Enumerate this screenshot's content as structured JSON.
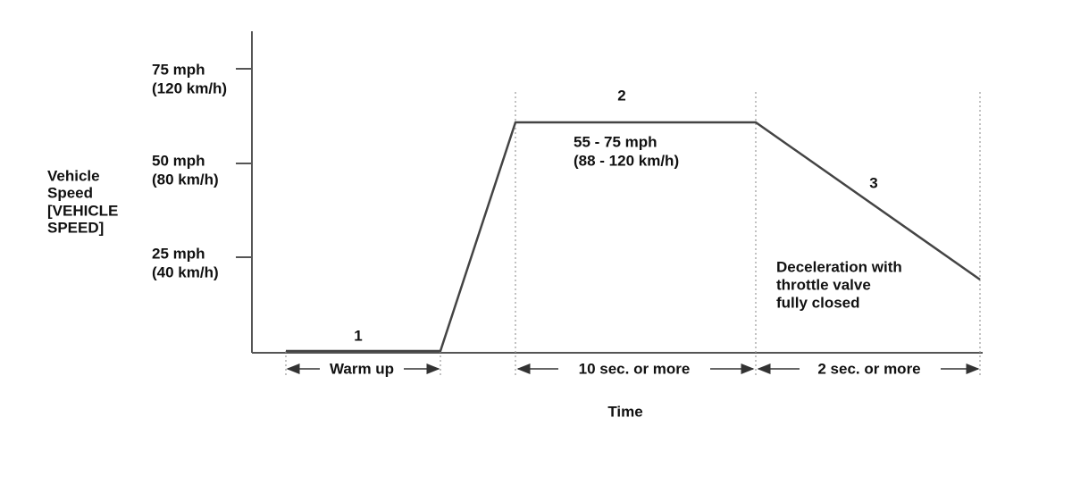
{
  "y_axis": {
    "label": [
      "Vehicle",
      "Speed",
      "[VEHICLE",
      "SPEED]"
    ],
    "ticks": [
      [
        "75 mph",
        "(120 km/h)"
      ],
      [
        "50 mph",
        "(80 km/h)"
      ],
      [
        "25 mph",
        "(40 km/h)"
      ]
    ]
  },
  "x_axis": {
    "label": "Time"
  },
  "phases": [
    {
      "number": "1",
      "duration": "Warm up"
    },
    {
      "number": "2",
      "duration": "10 sec. or more",
      "note": [
        "55 - 75 mph",
        "(88 - 120 km/h)"
      ]
    },
    {
      "number": "3",
      "duration": "2 sec. or more",
      "note": [
        "Deceleration with",
        "throttle valve",
        "fully closed"
      ]
    }
  ]
}
